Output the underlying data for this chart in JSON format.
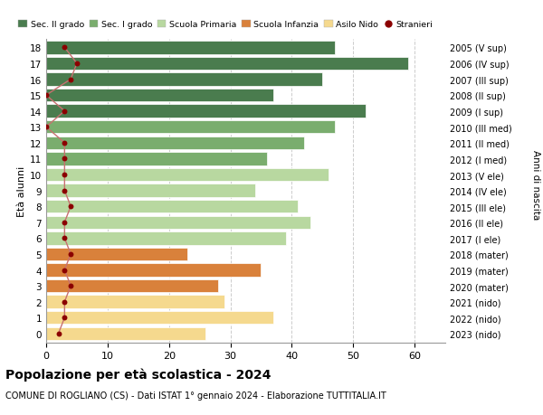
{
  "ages": [
    18,
    17,
    16,
    15,
    14,
    13,
    12,
    11,
    10,
    9,
    8,
    7,
    6,
    5,
    4,
    3,
    2,
    1,
    0
  ],
  "years_labels": [
    "2005 (V sup)",
    "2006 (IV sup)",
    "2007 (III sup)",
    "2008 (II sup)",
    "2009 (I sup)",
    "2010 (III med)",
    "2011 (II med)",
    "2012 (I med)",
    "2013 (V ele)",
    "2014 (IV ele)",
    "2015 (III ele)",
    "2016 (II ele)",
    "2017 (I ele)",
    "2018 (mater)",
    "2019 (mater)",
    "2020 (mater)",
    "2021 (nido)",
    "2022 (nido)",
    "2023 (nido)"
  ],
  "bar_values": [
    47,
    59,
    45,
    37,
    52,
    47,
    42,
    36,
    46,
    34,
    41,
    43,
    39,
    23,
    35,
    28,
    29,
    37,
    26
  ],
  "stranieri": [
    3,
    5,
    4,
    0,
    3,
    0,
    3,
    3,
    3,
    3,
    4,
    3,
    3,
    4,
    3,
    4,
    3,
    3,
    2
  ],
  "bar_colors": [
    "#4a7c4e",
    "#4a7c4e",
    "#4a7c4e",
    "#4a7c4e",
    "#4a7c4e",
    "#7aad6e",
    "#7aad6e",
    "#7aad6e",
    "#b8d8a0",
    "#b8d8a0",
    "#b8d8a0",
    "#b8d8a0",
    "#b8d8a0",
    "#d9813b",
    "#d9813b",
    "#d9813b",
    "#f5d98e",
    "#f5d98e",
    "#f5d98e"
  ],
  "legend_labels": [
    "Sec. II grado",
    "Sec. I grado",
    "Scuola Primaria",
    "Scuola Infanzia",
    "Asilo Nido",
    "Stranieri"
  ],
  "legend_colors": [
    "#4a7c4e",
    "#7aad6e",
    "#b8d8a0",
    "#d9813b",
    "#f5d98e",
    "#cc0000"
  ],
  "title": "Popolazione per età scolastica - 2024",
  "subtitle": "COMUNE DI ROGLIANO (CS) - Dati ISTAT 1° gennaio 2024 - Elaborazione TUTTITALIA.IT",
  "xlabel_age": "Età alunni",
  "xlabel_anni": "Anni di nascita",
  "xlim": [
    0,
    65
  ],
  "xticks": [
    0,
    10,
    20,
    30,
    40,
    50,
    60
  ],
  "background_color": "#ffffff",
  "stranieri_color": "#8b0000",
  "stranieri_line_color": "#c87070"
}
